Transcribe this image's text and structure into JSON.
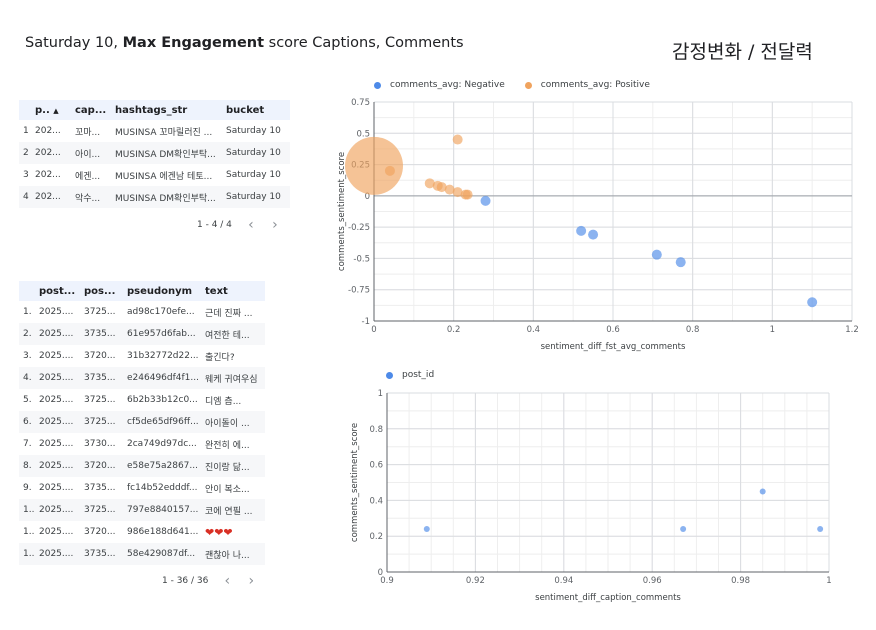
{
  "header": {
    "title_prefix": "Saturday 10, ",
    "title_bold": "Max Engagement",
    "title_suffix": " score Captions, Comments",
    "side_title": "감정변화 / 전달력"
  },
  "table1": {
    "columns": [
      "p..",
      "cap...",
      "hashtags_str",
      "bucket"
    ],
    "sort_indicator": "▲",
    "rows": [
      {
        "n": "1",
        "c": [
          "202...",
          "꼬마...",
          "MUSINSA 꼬마릴러진 ...",
          "Saturday 10"
        ]
      },
      {
        "n": "2",
        "c": [
          "202...",
          "아이...",
          "MUSINSA DM확인부탁...",
          "Saturday 10"
        ]
      },
      {
        "n": "3",
        "c": [
          "202...",
          "에겐...",
          "MUSINSA 에겐남 테토...",
          "Saturday 10"
        ]
      },
      {
        "n": "4",
        "c": [
          "202...",
          "악수...",
          "MUSINSA DM확인부탁...",
          "Saturday 10"
        ]
      }
    ],
    "pager": "1 - 4 / 4"
  },
  "table2": {
    "columns": [
      "post...",
      "pos...",
      "pseudonym",
      "text"
    ],
    "rows": [
      {
        "n": "1.",
        "c": [
          "2025....",
          "3725...",
          "ad98c170efe...",
          "근데 진짜 ..."
        ]
      },
      {
        "n": "2.",
        "c": [
          "2025....",
          "3735...",
          "61e957d6fab...",
          "여전한 테..."
        ]
      },
      {
        "n": "3.",
        "c": [
          "2025....",
          "3720...",
          "31b32772d22...",
          "출긴다?"
        ]
      },
      {
        "n": "4.",
        "c": [
          "2025....",
          "3735...",
          "e246496df4f1...",
          "웨케 귀여우심"
        ]
      },
      {
        "n": "5.",
        "c": [
          "2025....",
          "3725...",
          "6b2b33b12c0...",
          "디엠 츰..."
        ]
      },
      {
        "n": "6.",
        "c": [
          "2025....",
          "3725...",
          "cf5de65df96ff...",
          "아이돌이 ..."
        ]
      },
      {
        "n": "7.",
        "c": [
          "2025....",
          "3730...",
          "2ca749d97dc...",
          "완전히 에..."
        ]
      },
      {
        "n": "8.",
        "c": [
          "2025....",
          "3720...",
          "e58e75a2867...",
          "진이랑 닮..."
        ]
      },
      {
        "n": "9.",
        "c": [
          "2025....",
          "3735...",
          "fc14b52edddf...",
          "안이 복소..."
        ]
      },
      {
        "n": "1..",
        "c": [
          "2025....",
          "3725...",
          "797e8840157...",
          "코에 연필 ..."
        ]
      },
      {
        "n": "1..",
        "c": [
          "2025....",
          "3720...",
          "986e188d641...",
          "❤❤❤"
        ]
      },
      {
        "n": "1..",
        "c": [
          "2025....",
          "3735...",
          "58e429087df...",
          "괜찮아 나..."
        ]
      }
    ],
    "pager": "1 - 36 / 36"
  },
  "chart_data": [
    {
      "type": "scatter",
      "title": "",
      "xlabel": "sentiment_diff_fst_avg_comments",
      "ylabel": "comments_sentiment_score",
      "xlim": [
        0,
        1.2
      ],
      "ylim": [
        -1,
        0.75
      ],
      "xticks": [
        "0",
        "0.2",
        "0.4",
        "0.6",
        "0.8",
        "1",
        "1.2"
      ],
      "yticks": [
        "0.75",
        "0.5",
        "0.25",
        "0",
        "-0.25",
        "-0.5",
        "-0.75",
        "-1"
      ],
      "grid": true,
      "legend_position": "top-left",
      "series": [
        {
          "name": "comments_avg: Negative",
          "color": "#4d8ae8",
          "points": [
            {
              "x": 0.28,
              "y": -0.04,
              "size": 5
            },
            {
              "x": 0.52,
              "y": -0.28,
              "size": 5
            },
            {
              "x": 0.55,
              "y": -0.31,
              "size": 5
            },
            {
              "x": 0.71,
              "y": -0.47,
              "size": 5
            },
            {
              "x": 0.77,
              "y": -0.53,
              "size": 5
            },
            {
              "x": 1.1,
              "y": -0.85,
              "size": 5
            }
          ]
        },
        {
          "name": "comments_avg: Positive",
          "color": "#f0a35e",
          "points": [
            {
              "x": 0.0,
              "y": 0.24,
              "size": 29
            },
            {
              "x": 0.04,
              "y": 0.2,
              "size": 5
            },
            {
              "x": 0.21,
              "y": 0.45,
              "size": 5
            },
            {
              "x": 0.14,
              "y": 0.1,
              "size": 5
            },
            {
              "x": 0.16,
              "y": 0.08,
              "size": 5
            },
            {
              "x": 0.17,
              "y": 0.07,
              "size": 5
            },
            {
              "x": 0.19,
              "y": 0.05,
              "size": 5
            },
            {
              "x": 0.21,
              "y": 0.03,
              "size": 5
            },
            {
              "x": 0.23,
              "y": 0.01,
              "size": 5
            },
            {
              "x": 0.235,
              "y": 0.01,
              "size": 5
            }
          ]
        }
      ]
    },
    {
      "type": "scatter",
      "title": "",
      "xlabel": "sentiment_diff_caption_comments",
      "ylabel": "comments_sentiment_score",
      "xlim": [
        0.9,
        1.0
      ],
      "ylim": [
        0,
        1
      ],
      "xticks": [
        "0.9",
        "0.92",
        "0.94",
        "0.96",
        "0.98",
        "1"
      ],
      "yticks": [
        "1",
        "0.8",
        "0.6",
        "0.4",
        "0.2",
        "0"
      ],
      "grid": true,
      "legend_position": "top-left",
      "series": [
        {
          "name": "post_id",
          "color": "#4d8ae8",
          "points": [
            {
              "x": 0.909,
              "y": 0.24,
              "size": 3
            },
            {
              "x": 0.967,
              "y": 0.24,
              "size": 3
            },
            {
              "x": 0.985,
              "y": 0.45,
              "size": 3
            },
            {
              "x": 0.998,
              "y": 0.24,
              "size": 3
            }
          ]
        }
      ]
    }
  ]
}
